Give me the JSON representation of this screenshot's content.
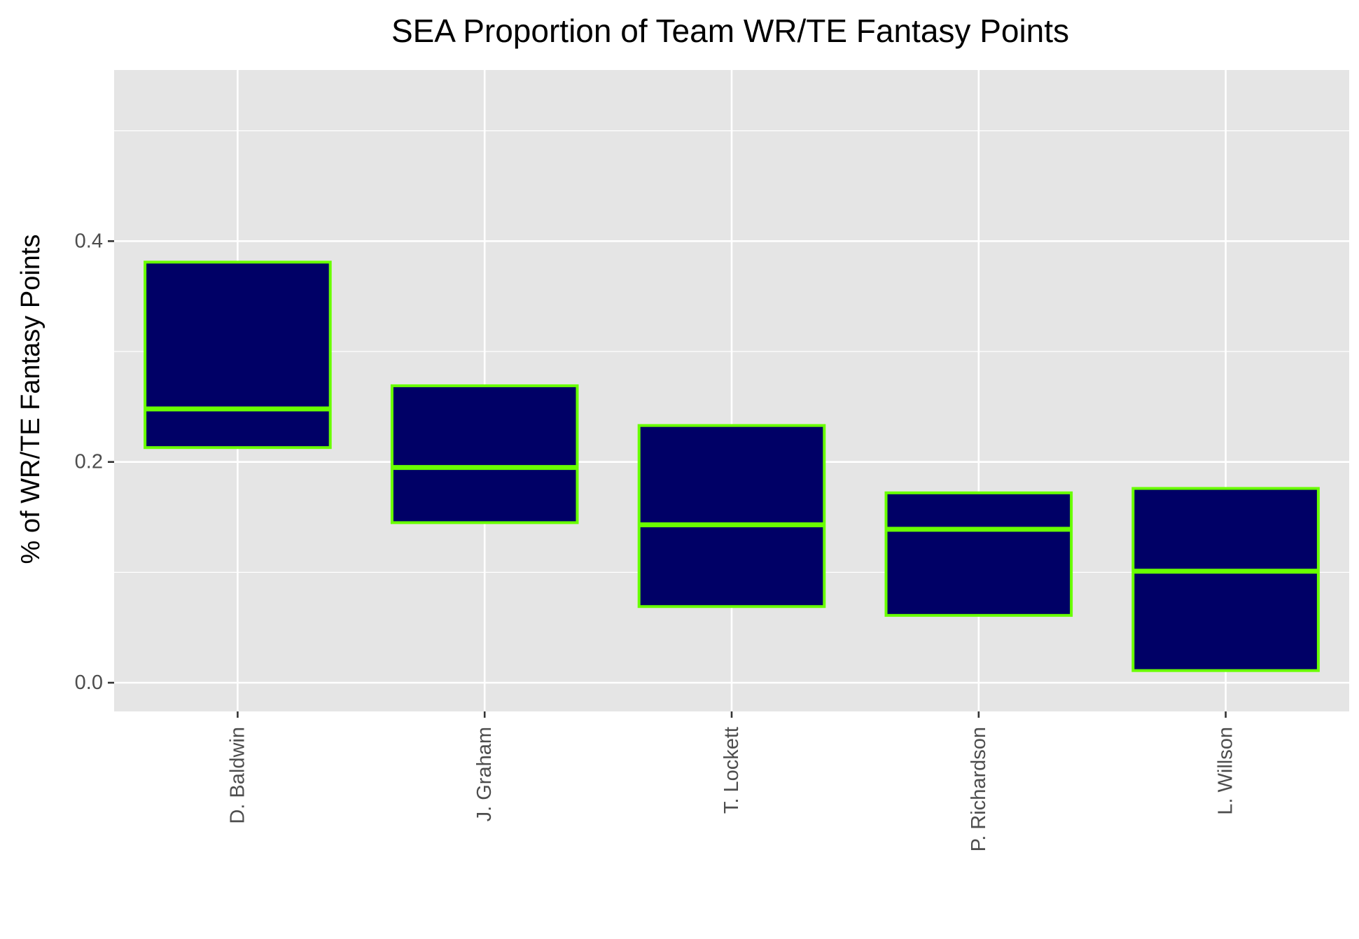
{
  "chart_data": {
    "type": "box",
    "title": "SEA Proportion of Team WR/TE Fantasy Points",
    "xlabel": "",
    "ylabel": "% of WR/TE Fantasy Points",
    "categories": [
      "D. Baldwin",
      "J. Graham",
      "T. Lockett",
      "P. Richardson",
      "L. Willson"
    ],
    "boxes": [
      {
        "category": "D. Baldwin",
        "q1": 0.213,
        "median": 0.248,
        "q3": 0.381
      },
      {
        "category": "J. Graham",
        "q1": 0.145,
        "median": 0.195,
        "q3": 0.269
      },
      {
        "category": "T. Lockett",
        "q1": 0.069,
        "median": 0.143,
        "q3": 0.233
      },
      {
        "category": "P. Richardson",
        "q1": 0.061,
        "median": 0.139,
        "q3": 0.172
      },
      {
        "category": "L. Willson",
        "q1": 0.011,
        "median": 0.101,
        "q3": 0.176
      }
    ],
    "ylim": [
      -0.026,
      0.555
    ],
    "yticks": [
      0.0,
      0.2,
      0.4
    ],
    "ytick_labels": [
      "0.0",
      "0.2",
      "0.4"
    ],
    "grid": true,
    "colors": {
      "panel_background": "#e5e5e5",
      "grid_line": "#ffffff",
      "box_fill": "#000066",
      "box_outline": "#69ff00",
      "tick_label": "#4d4d4d",
      "tick_mark": "#333333",
      "text": "#000000"
    }
  }
}
